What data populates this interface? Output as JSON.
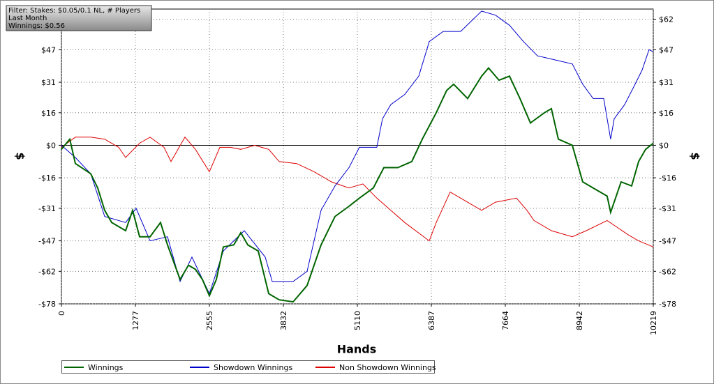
{
  "chart_data": {
    "type": "line",
    "annotations": [
      "Filter: Stakes: $0.05/0.1 NL, # Players",
      "Last Month",
      "Winnings: $0.56"
    ],
    "xlabel": "Hands",
    "ylabel": "$",
    "y2label": "$",
    "xlim": [
      0,
      10219
    ],
    "xticks": [
      0,
      1277,
      2555,
      3832,
      5110,
      6387,
      7664,
      8942,
      10219
    ],
    "ylim": [
      -78,
      67
    ],
    "yticks": [
      {
        "value": -78,
        "label": "-$78"
      },
      {
        "value": -62,
        "label": "-$62"
      },
      {
        "value": -47,
        "label": "-$47"
      },
      {
        "value": -31,
        "label": "-$31"
      },
      {
        "value": -16,
        "label": "-$16"
      },
      {
        "value": 0,
        "label": "$0"
      },
      {
        "value": 16,
        "label": "$16"
      },
      {
        "value": 31,
        "label": "$31"
      },
      {
        "value": 47,
        "label": "$47"
      },
      {
        "value": 62,
        "label": "$62"
      }
    ],
    "grid": true,
    "series": [
      {
        "name": "Winnings",
        "color": "#006400",
        "x": [
          0,
          145,
          241,
          506,
          627,
          747,
          868,
          1109,
          1229,
          1350,
          1530,
          1711,
          1832,
          2049,
          2193,
          2314,
          2434,
          2555,
          2675,
          2796,
          2976,
          3097,
          3217,
          3398,
          3579,
          3760,
          4001,
          4242,
          4483,
          4724,
          4965,
          5145,
          5386,
          5567,
          5808,
          6049,
          6230,
          6471,
          6652,
          6772,
          7013,
          7254,
          7375,
          7556,
          7736,
          7917,
          8098,
          8339,
          8459,
          8580,
          8821,
          9001,
          9182,
          9423,
          9483,
          9664,
          9845,
          9966,
          10086,
          10219
        ],
        "values": [
          -2,
          3,
          -9,
          -14,
          -21,
          -32,
          -38,
          -42,
          -32,
          -45,
          -45,
          -38,
          -49,
          -66,
          -59,
          -61,
          -66,
          -74,
          -66,
          -50,
          -49,
          -43,
          -49,
          -52,
          -73,
          -76,
          -77,
          -69,
          -49,
          -35,
          -30,
          -26,
          -21,
          -11,
          -11,
          -8,
          3,
          16,
          27,
          30,
          23,
          34,
          38,
          32,
          34,
          23,
          11,
          16,
          18,
          3,
          0,
          -18,
          -21,
          -25,
          -33,
          -18,
          -20,
          -8,
          -2,
          1
        ]
      },
      {
        "name": "Showdown Winnings",
        "color": "#0000cc",
        "x": [
          0,
          241,
          506,
          747,
          1109,
          1290,
          1530,
          1832,
          2049,
          2254,
          2555,
          2796,
          3157,
          3519,
          3639,
          4001,
          4242,
          4483,
          4724,
          4965,
          5145,
          5446,
          5543,
          5687,
          5928,
          6170,
          6351,
          6592,
          6893,
          7254,
          7495,
          7736,
          7977,
          8218,
          8519,
          8821,
          9001,
          9182,
          9363,
          9483,
          9544,
          9725,
          9905,
          10026,
          10146,
          10219
        ],
        "values": [
          0,
          -6,
          -14,
          -35,
          -38,
          -31,
          -47,
          -45,
          -67,
          -55,
          -73,
          -52,
          -42,
          -55,
          -67,
          -67,
          -62,
          -32,
          -20,
          -11,
          -1,
          -1,
          13,
          20,
          25,
          34,
          51,
          56,
          56,
          66,
          64,
          59,
          51,
          44,
          42,
          40,
          30,
          23,
          23,
          3,
          13,
          20,
          30,
          37,
          47,
          46
        ]
      },
      {
        "name": "Non Showdown Winnings",
        "color": "#dd0000",
        "x": [
          0,
          241,
          506,
          747,
          988,
          1109,
          1350,
          1530,
          1771,
          1892,
          2133,
          2314,
          2555,
          2735,
          2916,
          3097,
          3338,
          3579,
          3760,
          4061,
          4362,
          4664,
          4965,
          5206,
          5446,
          5687,
          5928,
          6351,
          6471,
          6712,
          6893,
          7254,
          7495,
          7857,
          8038,
          8159,
          8459,
          8821,
          9062,
          9423,
          9784,
          9966,
          10219
        ],
        "values": [
          -1,
          4,
          4,
          3,
          -1,
          -6,
          1,
          4,
          -1,
          -8,
          4,
          -2,
          -13,
          -1,
          -1,
          -2,
          0,
          -2,
          -8,
          -9,
          -13,
          -18,
          -21,
          -19,
          -26,
          -32,
          -38,
          -47,
          -38,
          -23,
          -26,
          -32,
          -28,
          -26,
          -32,
          -37,
          -42,
          -45,
          -42,
          -37,
          -44,
          -47,
          -50
        ]
      }
    ]
  }
}
